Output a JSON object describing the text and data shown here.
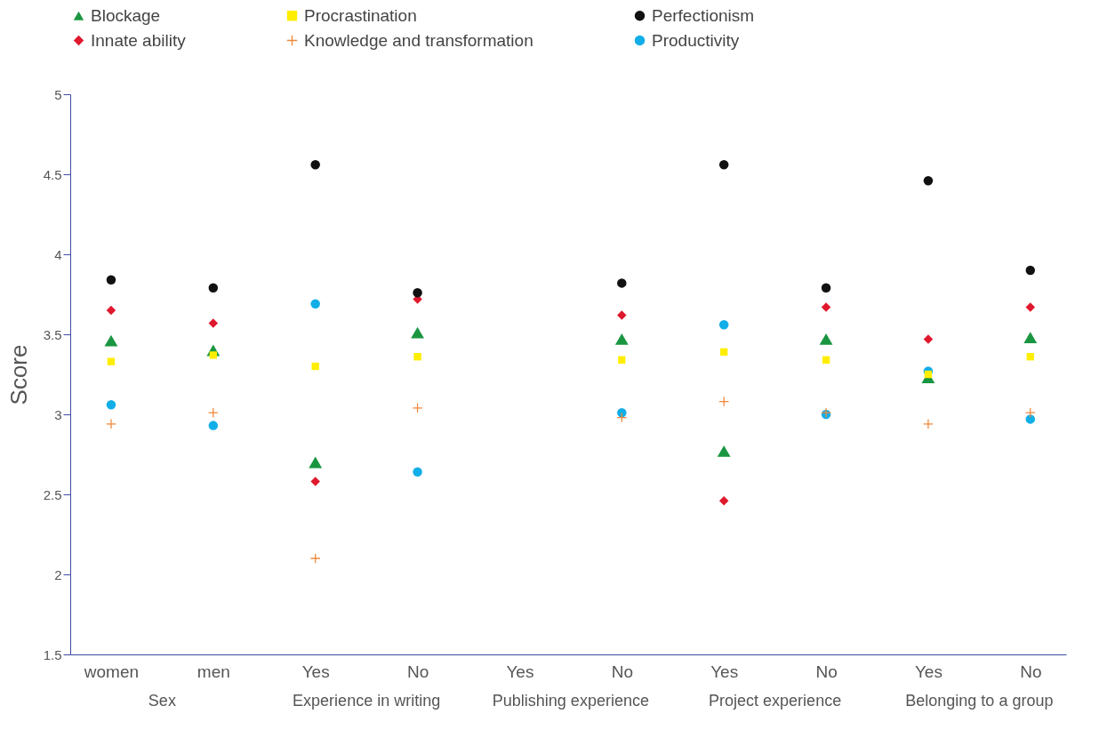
{
  "chart_data": {
    "type": "scatter",
    "ylabel": "Score",
    "categories": [
      "women",
      "men",
      "Yes",
      "No",
      "Yes",
      "No",
      "Yes",
      "No",
      "Yes",
      "No"
    ],
    "annotations": [
      "Sex",
      "Experience in writing",
      "Publishing experience",
      "Project experience",
      "Belonging to a group"
    ],
    "ylim": [
      1.5,
      5
    ],
    "yticks": [
      1.5,
      2,
      2.5,
      3,
      3.5,
      4,
      4.5,
      5
    ],
    "grid": false,
    "legend": "top",
    "series": [
      {
        "name": "Blockage",
        "color": "#1a9641",
        "marker": "triangle",
        "values": [
          3.46,
          3.4,
          2.7,
          3.51,
          null,
          3.47,
          2.77,
          3.47,
          3.23,
          3.48
        ]
      },
      {
        "name": "Procrastination",
        "color": "#ffee00",
        "marker": "square",
        "values": [
          3.33,
          3.37,
          3.3,
          3.36,
          null,
          3.34,
          3.39,
          3.34,
          3.25,
          3.36
        ]
      },
      {
        "name": "Perfectionism",
        "color": "#111111",
        "marker": "circle",
        "values": [
          3.84,
          3.79,
          4.56,
          3.76,
          null,
          3.82,
          4.56,
          3.79,
          4.46,
          3.9
        ]
      },
      {
        "name": "Innate ability",
        "color": "#e0182d",
        "marker": "diamond",
        "values": [
          3.65,
          3.57,
          2.58,
          3.72,
          null,
          3.62,
          2.46,
          3.67,
          3.47,
          3.67
        ]
      },
      {
        "name": "Knowledge and transformation",
        "color": "#f0883a",
        "marker": "cross",
        "values": [
          2.94,
          3.01,
          2.1,
          3.04,
          null,
          2.98,
          3.08,
          3.01,
          2.94,
          3.01
        ]
      },
      {
        "name": "Productivity",
        "color": "#12aee8",
        "marker": "circle",
        "values": [
          3.06,
          2.93,
          3.69,
          2.64,
          null,
          3.01,
          3.56,
          3.0,
          3.27,
          2.97
        ]
      }
    ]
  }
}
